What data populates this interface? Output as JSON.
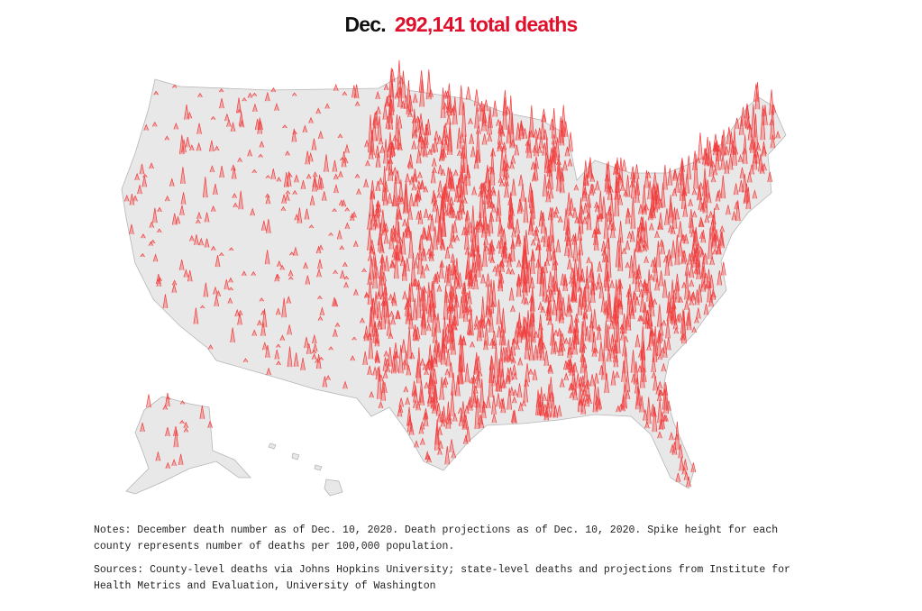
{
  "header": {
    "month": "Dec.",
    "total": "292,141 total deaths"
  },
  "colors": {
    "accent": "#e0102d",
    "land": "#e8e8e8",
    "border": "#b5b5b5",
    "spike": "#f23c3c"
  },
  "chart_data": {
    "type": "spike-map",
    "title": "Dec. 292,141 total deaths",
    "metric": "deaths per 100,000 population by county",
    "region": "United States"
  },
  "footer": {
    "notes": "Notes: December death number as of Dec. 10, 2020. Death projections as of Dec. 10, 2020. Spike height for each county represents number of deaths per 100,000 population.",
    "sources": "Sources: County-level deaths via Johns Hopkins University; state-level deaths and projections from Institute for Health Metrics and Evaluation, University of Washington"
  }
}
